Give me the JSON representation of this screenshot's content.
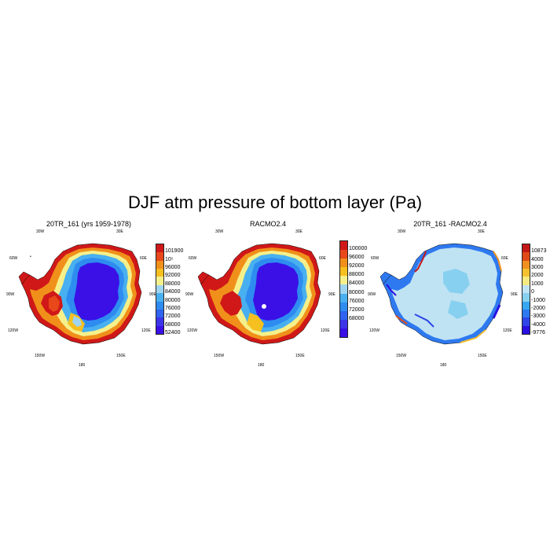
{
  "title": "DJF atm pressure of bottom layer (Pa)",
  "colors": {
    "ramp": [
      "#3a10e6",
      "#3d35e8",
      "#2f63f0",
      "#2e8cf0",
      "#48b0f0",
      "#9fd4f0",
      "#f5f08a",
      "#f5c020",
      "#f0901a",
      "#e8481a",
      "#d01818"
    ],
    "diff": [
      "#2a10e0",
      "#2f45e8",
      "#2e79f0",
      "#36a6f0",
      "#88d0f0",
      "#bfe3f3",
      "#f5ea80",
      "#f5c030",
      "#f09020",
      "#e04a18",
      "#c41818"
    ]
  },
  "panels": [
    {
      "title": "20TR_161 (yrs 1959-1978)",
      "lon_labels": [
        "30W",
        "30E",
        "60W",
        "60E",
        "90W",
        "90E",
        "120W",
        "120E",
        "150W",
        "150E",
        "180"
      ],
      "colorbar": {
        "labels": [
          "101900",
          "10⁵",
          "96000",
          "92000",
          "88000",
          "84000",
          "80000",
          "76000",
          "72000",
          "68000",
          "52400"
        ]
      }
    },
    {
      "title": "RACMO2.4",
      "lon_labels": [
        "30W",
        "30E",
        "60W",
        "60E",
        "90W",
        "90E",
        "120W",
        "120E",
        "150W",
        "150E",
        "180"
      ],
      "colorbar": {
        "labels": [
          "100000",
          "96000",
          "92000",
          "88000",
          "84000",
          "80000",
          "76000",
          "72000",
          "68000"
        ]
      }
    },
    {
      "title": "20TR_161 -RACMO2.4",
      "lon_labels": [
        "30W",
        "30E",
        "60W",
        "60E",
        "90W",
        "90E",
        "120W",
        "120E",
        "150W",
        "150E",
        "180"
      ],
      "colorbar": {
        "labels": [
          "10873",
          "4000",
          "3000",
          "2000",
          "1000",
          "0",
          "-1000",
          "-2000",
          "-3000",
          "-4000",
          "-9776"
        ]
      }
    }
  ]
}
